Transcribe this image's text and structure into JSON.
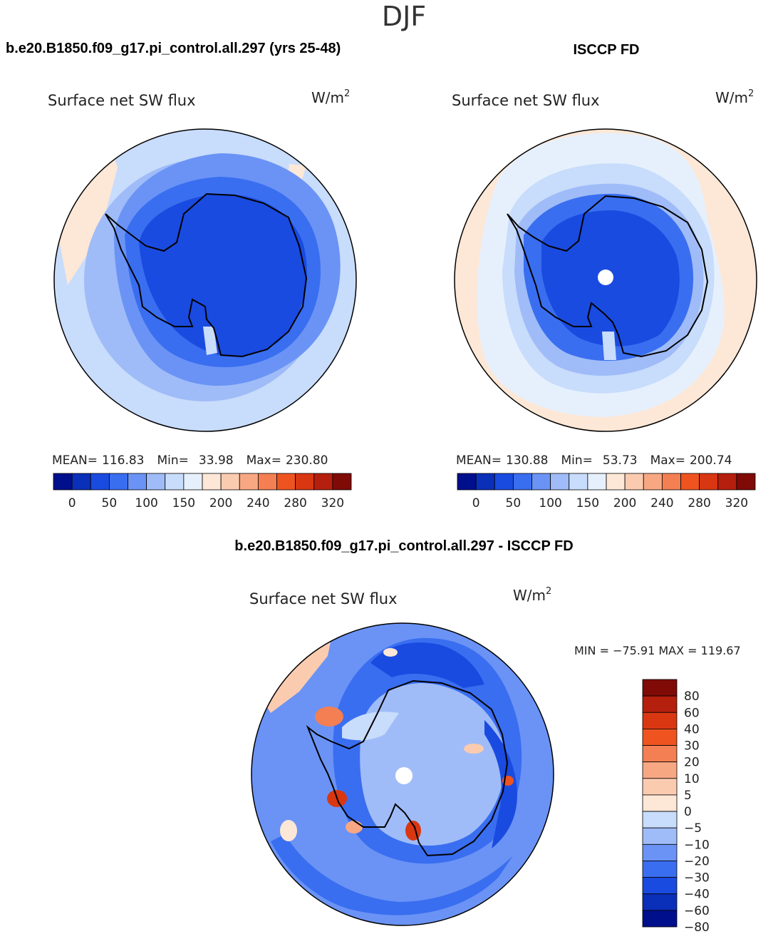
{
  "season": "DJF",
  "panels": {
    "model_header": "b.e20.B1850.f09_g17.pi_control.all.297 (yrs 25-48)",
    "obs_header": "ISCCP FD",
    "diff_header": "b.e20.B1850.f09_g17.pi_control.all.297 - ISCCP FD"
  },
  "colors": {
    "abs_scale": [
      "#000f8c",
      "#0a2fb8",
      "#1a4be0",
      "#3a6ef0",
      "#6a93f5",
      "#9fbcf8",
      "#c8dcfb",
      "#e6f0fd",
      "#fde7d6",
      "#fbcbb0",
      "#f7a883",
      "#f47f52",
      "#ef5420",
      "#d93712",
      "#b51f0d",
      "#7f0a06"
    ],
    "diff_scale": [
      "#000f8c",
      "#0a2fb8",
      "#1a4be0",
      "#3a6ef0",
      "#6a93f5",
      "#9fbcf8",
      "#c8dcfb",
      "#fde7d6",
      "#fbcbb0",
      "#f7a883",
      "#f47f52",
      "#ef5420",
      "#d93712",
      "#b51f0d",
      "#7f0a06"
    ]
  },
  "chart_data": [
    {
      "type": "heatmap",
      "id": "model",
      "title": "Surface net SW flux",
      "units": "W/m",
      "units_exp": "2",
      "stats": {
        "mean_label": "MEAN=",
        "mean": "116.83",
        "min_label": "Min=",
        "min": "33.98",
        "max_label": "Max=",
        "max": "230.80"
      },
      "levels": [
        "0",
        "50",
        "100",
        "150",
        "200",
        "240",
        "280",
        "320"
      ],
      "field": "sw_flux_model"
    },
    {
      "type": "heatmap",
      "id": "obs",
      "title": "Surface net SW flux",
      "units": "W/m",
      "units_exp": "2",
      "stats": {
        "mean_label": "MEAN=",
        "mean": "130.88",
        "min_label": "Min=",
        "min": "53.73",
        "max_label": "Max=",
        "max": "200.74"
      },
      "levels": [
        "0",
        "50",
        "100",
        "150",
        "200",
        "240",
        "280",
        "320"
      ],
      "field": "sw_flux_obs"
    },
    {
      "type": "heatmap",
      "id": "diff",
      "title": "Surface net SW flux",
      "units": "W/m",
      "units_exp": "2",
      "minmax": "MIN = −75.91  MAX = 119.67",
      "levels": [
        "80",
        "60",
        "40",
        "30",
        "20",
        "10",
        "5",
        "0",
        "−5",
        "−10",
        "−20",
        "−30",
        "−40",
        "−60",
        "−80"
      ],
      "field": "sw_flux_difference"
    }
  ]
}
